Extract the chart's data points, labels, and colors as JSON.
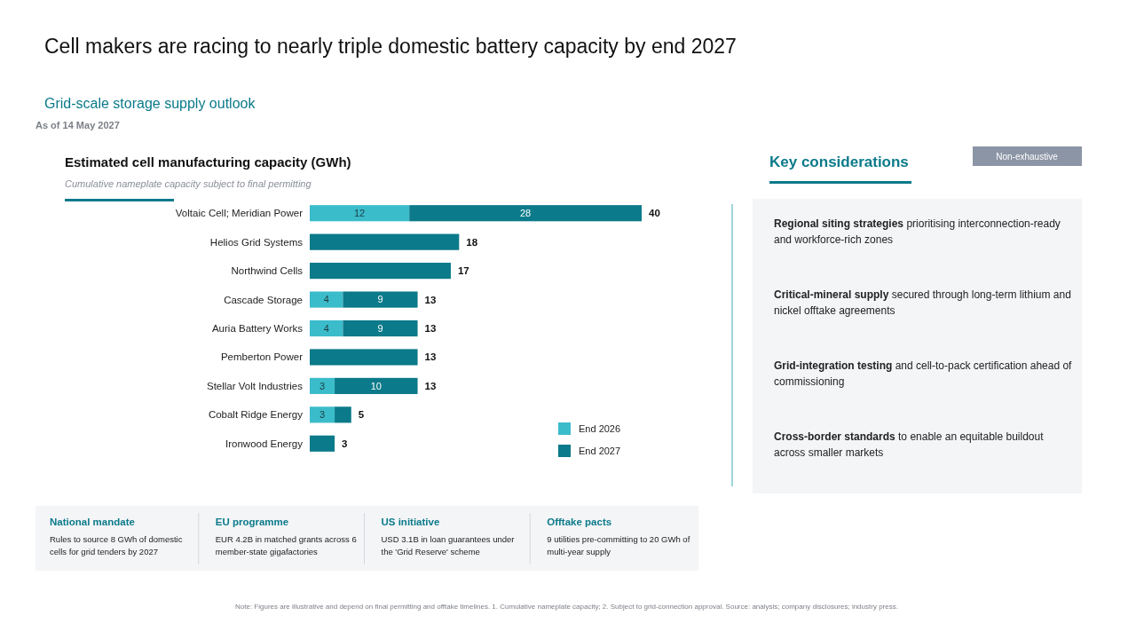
{
  "chart_data": [
    {
      "type": "bar",
      "title": "Estimated cell manufacturing capacity (GWh)",
      "subtitle": "Cumulative nameplate capacity subject to final permitting",
      "orientation": "horizontal",
      "stacked": true,
      "legend": "bottom right",
      "xlim": [
        0,
        40
      ],
      "tick_labels": "y",
      "categories": [
        "Voltaic Cell; Meridian Power",
        "Helios Grid Systems",
        "Northwind Cells",
        "Cascade Storage",
        "Auria Battery Works",
        "Pemberton Power",
        "Stellar Volt Industries",
        "Cobalt Ridge Energy",
        "Ironwood Energy"
      ],
      "series": [
        {
          "name": "End 2026",
          "color": "#3bbccb",
          "values": [
            12,
            null,
            null,
            4,
            4,
            null,
            3,
            3,
            null
          ],
          "value_labels": [
            "12",
            null,
            null,
            "4",
            "4",
            null,
            "3",
            "3",
            null
          ]
        },
        {
          "name": "End 2027",
          "color": "#0b7a8a",
          "values": [
            28,
            18,
            17,
            9,
            9,
            13,
            10,
            2,
            3
          ],
          "value_labels": [
            "28",
            null,
            null,
            "9",
            "9",
            null,
            "10",
            null,
            null
          ]
        }
      ],
      "totals": [
        "40",
        "18",
        "17",
        "13",
        "13",
        "13",
        "13",
        "5",
        "3"
      ]
    },
    {
      "type": "other",
      "title": "Cell makers are racing to nearly triple domestic battery capacity by end 2027",
      "subtitle": "Grid-scale storage supply outlook",
      "annotations": [
        "As of 14 May 2027",
        "Note: Figures are illustrative and depend on final permitting and offtake timelines. 1. Cumulative nameplate capacity; 2. Subject to grid-connection approval. Source: analysis; company disclosures; industry press."
      ]
    },
    {
      "type": "other",
      "title": "Key considerations",
      "annotations": [
        "Non-exhaustive",
        "Regional siting strategies",
        "prioritising interconnection-ready and workforce-rich zones",
        "Critical-mineral supply",
        "secured through long-term lithium and nickel offtake agreements",
        "Grid-integration testing",
        "and cell-to-pack certification ahead of commissioning",
        "Cross-border standards",
        "to enable an equitable buildout across smaller markets"
      ]
    },
    {
      "type": "other",
      "annotations": [
        "National mandate",
        "Rules to source 8 GWh of domestic cells for grid tenders by 2027",
        "EU programme",
        "EUR 4.2B in matched grants across 6 member-state gigafactories",
        "US initiative",
        "USD 3.1B in loan guarantees under the 'Grid Reserve' scheme",
        "Offtake pacts",
        "9 utilities pre-committing to 20 GWh of multi-year supply"
      ]
    }
  ]
}
